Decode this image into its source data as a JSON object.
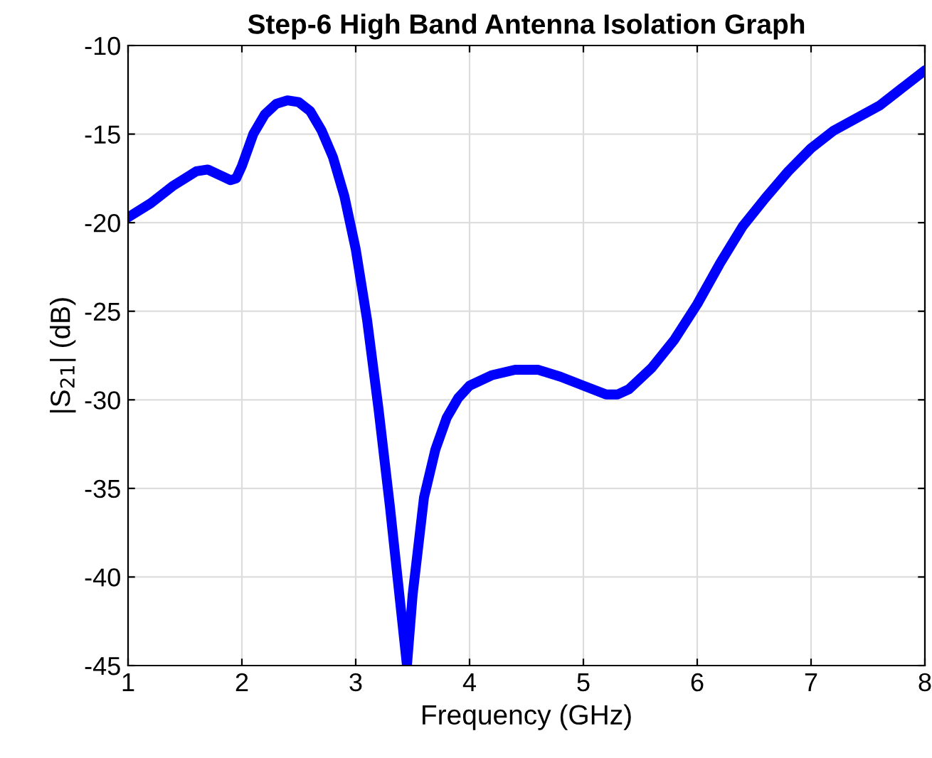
{
  "chart_data": {
    "type": "line",
    "title": "Step-6 High Band Antenna Isolation Graph",
    "xlabel": "Frequency (GHz)",
    "ylabel": "|S$_{21}$| (dB)",
    "x": [
      1.0,
      1.2,
      1.4,
      1.6,
      1.7,
      1.8,
      1.9,
      1.95,
      2.0,
      2.1,
      2.2,
      2.3,
      2.4,
      2.5,
      2.6,
      2.7,
      2.8,
      2.9,
      3.0,
      3.1,
      3.2,
      3.3,
      3.4,
      3.45,
      3.5,
      3.6,
      3.7,
      3.8,
      3.9,
      4.0,
      4.2,
      4.4,
      4.6,
      4.8,
      5.0,
      5.2,
      5.3,
      5.4,
      5.6,
      5.8,
      6.0,
      6.2,
      6.4,
      6.6,
      6.8,
      7.0,
      7.2,
      7.4,
      7.6,
      7.8,
      8.0
    ],
    "series": [
      {
        "color": "#0000ff",
        "values": [
          -19.7,
          -18.9,
          -17.9,
          -17.1,
          -17.0,
          -17.3,
          -17.6,
          -17.5,
          -16.8,
          -15.0,
          -13.9,
          -13.3,
          -13.1,
          -13.2,
          -13.7,
          -14.8,
          -16.3,
          -18.5,
          -21.5,
          -25.5,
          -30.5,
          -36,
          -42,
          -45,
          -41,
          -35.5,
          -32.8,
          -31.0,
          -29.9,
          -29.2,
          -28.6,
          -28.3,
          -28.3,
          -28.7,
          -29.2,
          -29.7,
          -29.7,
          -29.4,
          -28.2,
          -26.6,
          -24.6,
          -22.3,
          -20.2,
          -18.6,
          -17.1,
          -15.8,
          -14.8,
          -14.1,
          -13.4,
          -12.4,
          -11.4
        ]
      }
    ],
    "xlim": [
      1,
      8
    ],
    "xticks": [
      1,
      2,
      3,
      4,
      5,
      6,
      7,
      8
    ],
    "ylim": [
      -45,
      -10
    ],
    "yticks": [
      -45,
      -40,
      -35,
      -30,
      -25,
      -20,
      -15,
      -10
    ],
    "grid": true,
    "legend": false,
    "marker": "none",
    "line_style": "solid"
  }
}
